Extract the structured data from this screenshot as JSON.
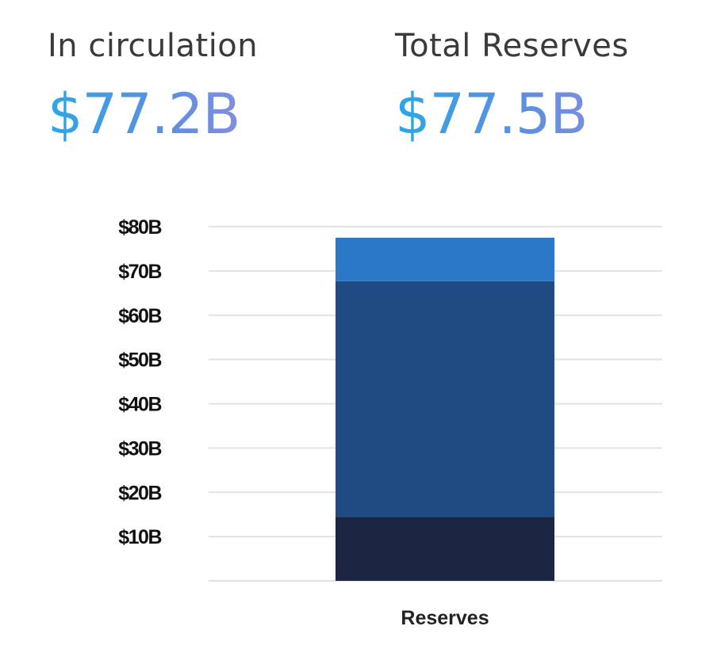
{
  "stats": {
    "circulation": {
      "label": "In circulation",
      "value": "$77.2B"
    },
    "reserves": {
      "label": "Total Reserves",
      "value": "$77.5B"
    }
  },
  "chart_data": {
    "type": "bar",
    "stacked": true,
    "categories": [
      "Reserves"
    ],
    "series": [
      {
        "values": [
          14.4
        ],
        "color": "#1c2541"
      },
      {
        "values": [
          53.3
        ],
        "color": "#1f4b82"
      },
      {
        "values": [
          9.8
        ],
        "color": "#2b78c9"
      }
    ],
    "ylim": [
      0,
      80
    ],
    "yticks": [
      10,
      20,
      30,
      40,
      50,
      60,
      70,
      80
    ],
    "ytick_labels": [
      "$10B",
      "$20B",
      "$30B",
      "$40B",
      "$50B",
      "$60B",
      "$70B",
      "$80B"
    ],
    "grid": true,
    "grid_color": "#e2e2e2"
  }
}
